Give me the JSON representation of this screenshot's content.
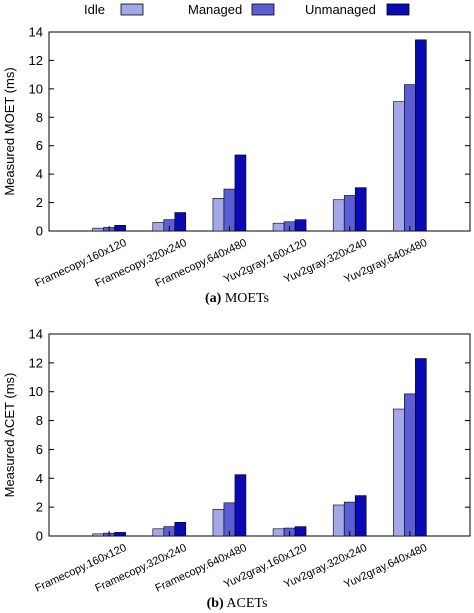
{
  "legend": {
    "items": [
      {
        "label": "Idle",
        "color": "#a4a8e8"
      },
      {
        "label": "Managed",
        "color": "#5c5ed6"
      },
      {
        "label": "Unmanaged",
        "color": "#0a0ab4"
      }
    ]
  },
  "chart_data": [
    {
      "type": "bar",
      "title": "",
      "xlabel": "",
      "ylabel": "Measured MOET (ms)",
      "ylim": [
        0,
        14
      ],
      "yticks": [
        0,
        2,
        4,
        6,
        8,
        10,
        12,
        14
      ],
      "grid": false,
      "caption_letter": "(a)",
      "caption_text": "MOETs",
      "categories": [
        "Framecopy.160x120",
        "Framecopy.320x240",
        "Framecopy.640x480",
        "Yuv2gray.160x120",
        "Yuv2gray.320x240",
        "Yuv2gray.640x480"
      ],
      "series": [
        {
          "name": "Idle",
          "values": [
            0.2,
            0.6,
            2.3,
            0.55,
            2.2,
            9.1
          ]
        },
        {
          "name": "Managed",
          "values": [
            0.25,
            0.8,
            2.95,
            0.65,
            2.5,
            10.3
          ]
        },
        {
          "name": "Unmanaged",
          "values": [
            0.4,
            1.3,
            5.35,
            0.8,
            3.05,
            13.45
          ]
        }
      ]
    },
    {
      "type": "bar",
      "title": "",
      "xlabel": "",
      "ylabel": "Measured ACET (ms)",
      "ylim": [
        0,
        14
      ],
      "yticks": [
        0,
        2,
        4,
        6,
        8,
        10,
        12,
        14
      ],
      "grid": false,
      "caption_letter": "(b)",
      "caption_text": "ACETs",
      "categories": [
        "Framecopy.160x120",
        "Framecopy.320x240",
        "Framecopy.640x480",
        "Yuv2gray.160x120",
        "Yuv2gray.320x240",
        "Yuv2gray.640x480"
      ],
      "series": [
        {
          "name": "Idle",
          "values": [
            0.15,
            0.5,
            1.85,
            0.5,
            2.15,
            8.8
          ]
        },
        {
          "name": "Managed",
          "values": [
            0.2,
            0.65,
            2.3,
            0.55,
            2.35,
            9.85
          ]
        },
        {
          "name": "Unmanaged",
          "values": [
            0.25,
            0.95,
            4.25,
            0.65,
            2.8,
            12.3
          ]
        }
      ]
    }
  ]
}
